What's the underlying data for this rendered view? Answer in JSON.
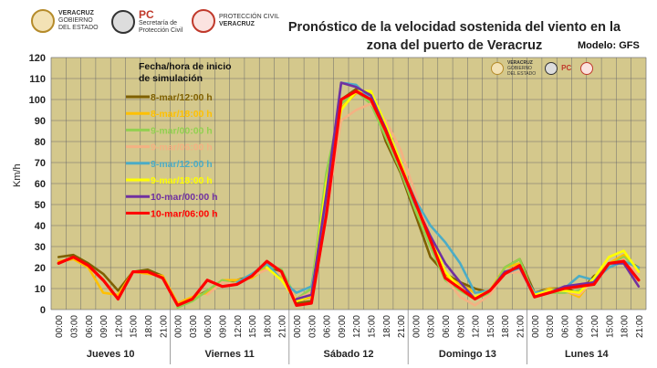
{
  "header": {
    "logos": [
      {
        "name": "veracruz-gobierno-logo",
        "lines": [
          "VERACRUZ",
          "GOBIERNO",
          "DEL ESTADO"
        ]
      },
      {
        "name": "proteccion-civil-logo",
        "big": "PC",
        "lines": [
          "Secretaría de",
          "Protección Civil"
        ]
      },
      {
        "name": "proteccion-civil-veracruz-logo",
        "lines": [
          "PROTECCIÓN CIVIL",
          "VERACRUZ"
        ]
      }
    ],
    "title_line1": "Pronóstico de la velocidad sostenida del viento en la",
    "title_line2": "zona del puerto de Veracruz",
    "model": "Modelo: GFS"
  },
  "chart_data": {
    "type": "line",
    "title": "Pronóstico de la velocidad sostenida del viento en la zona del puerto de Veracruz",
    "ylabel": "Km/h",
    "ylim": [
      0,
      120
    ],
    "yticks": [
      0,
      10,
      20,
      30,
      40,
      50,
      60,
      70,
      80,
      90,
      100,
      110,
      120
    ],
    "grid": true,
    "legend_title": "Fecha/hora de inicio de simulación",
    "legend_position": "top-left",
    "x": [
      "00:00",
      "03:00",
      "06:00",
      "09:00",
      "12:00",
      "15:00",
      "18:00",
      "21:00",
      "00:00",
      "03:00",
      "06:00",
      "09:00",
      "12:00",
      "15:00",
      "18:00",
      "21:00",
      "00:00",
      "03:00",
      "06:00",
      "09:00",
      "12:00",
      "15:00",
      "18:00",
      "21:00",
      "00:00",
      "03:00",
      "06:00",
      "09:00",
      "12:00",
      "15:00",
      "18:00",
      "21:00",
      "00:00",
      "03:00",
      "06:00",
      "09:00",
      "12:00",
      "15:00",
      "18:00",
      "21:00"
    ],
    "days": [
      "Jueves 10",
      "Viernes 11",
      "Sábado 12",
      "Domingo 13",
      "Lunes 14"
    ],
    "series": [
      {
        "name": "8-mar/12:00 h",
        "color": "#7f6000",
        "values": [
          25,
          26,
          22,
          17,
          9,
          18,
          19,
          16,
          2,
          5,
          9,
          13,
          14,
          16,
          22,
          17,
          3,
          4,
          60,
          100,
          105,
          102,
          80,
          65,
          45,
          25,
          17,
          13,
          10,
          8,
          20,
          24,
          8,
          10,
          10,
          8,
          16,
          20,
          24,
          20
        ]
      },
      {
        "name": "8-mar/18:00 h",
        "color": "#ffc000",
        "values": [
          23,
          24,
          20,
          8,
          7,
          18,
          17,
          16,
          3,
          6,
          8,
          14,
          14,
          15,
          20,
          15,
          4,
          6,
          58,
          96,
          103,
          103,
          85,
          70,
          50,
          30,
          16,
          12,
          8,
          9,
          20,
          22,
          7,
          10,
          9,
          6,
          15,
          22,
          26,
          18
        ]
      },
      {
        "name": "9-mar/00:00 h",
        "color": "#92d050",
        "values": [
          null,
          null,
          null,
          null,
          null,
          null,
          null,
          null,
          1,
          4,
          9,
          14,
          12,
          17,
          21,
          19,
          5,
          10,
          65,
          98,
          104,
          98,
          82,
          66,
          47,
          30,
          14,
          9,
          5,
          8,
          20,
          24,
          6,
          8,
          8,
          9,
          14,
          21,
          25,
          19
        ]
      },
      {
        "name": "9-mar/06:00 h",
        "color": "#f4b183",
        "values": [
          null,
          null,
          null,
          null,
          null,
          null,
          null,
          null,
          null,
          null,
          7,
          13,
          12,
          16,
          19,
          17,
          5,
          8,
          45,
          90,
          95,
          98,
          90,
          76,
          55,
          35,
          15,
          6,
          2,
          7,
          17,
          18,
          8,
          9,
          9,
          7,
          14,
          20,
          24,
          17
        ]
      },
      {
        "name": "9-mar/12:00 h",
        "color": "#4bacc6",
        "values": [
          null,
          null,
          null,
          null,
          null,
          null,
          null,
          null,
          null,
          null,
          null,
          null,
          13,
          17,
          22,
          14,
          8,
          11,
          50,
          108,
          107,
          100,
          85,
          68,
          52,
          40,
          32,
          22,
          8,
          9,
          17,
          20,
          8,
          9,
          10,
          16,
          14,
          20,
          23,
          20
        ]
      },
      {
        "name": "9-mar/18:00 h",
        "color": "#ffff00",
        "values": [
          null,
          null,
          null,
          null,
          null,
          null,
          null,
          null,
          null,
          null,
          null,
          null,
          null,
          null,
          20,
          14,
          4,
          7,
          60,
          95,
          104,
          104,
          88,
          70,
          50,
          35,
          18,
          10,
          6,
          9,
          18,
          20,
          7,
          9,
          9,
          8,
          15,
          25,
          28,
          18
        ]
      },
      {
        "name": "10-mar/00:00 h",
        "color": "#7030a0",
        "values": [
          null,
          null,
          null,
          null,
          null,
          null,
          null,
          null,
          null,
          null,
          null,
          null,
          null,
          null,
          null,
          null,
          5,
          7,
          55,
          108,
          106,
          102,
          86,
          68,
          50,
          35,
          22,
          13,
          5,
          9,
          18,
          20,
          6,
          8,
          11,
          12,
          13,
          22,
          22,
          11
        ]
      },
      {
        "name": "10-mar/06:00 h",
        "color": "#ff0000",
        "values": [
          22,
          25,
          21,
          14,
          5,
          18,
          18,
          15,
          2,
          5,
          14,
          11,
          12,
          16,
          23,
          18,
          2,
          3,
          45,
          100,
          104,
          100,
          85,
          68,
          51,
          33,
          15,
          10,
          5,
          9,
          17,
          21,
          6,
          8,
          10,
          11,
          12,
          22,
          23,
          14
        ]
      }
    ]
  }
}
